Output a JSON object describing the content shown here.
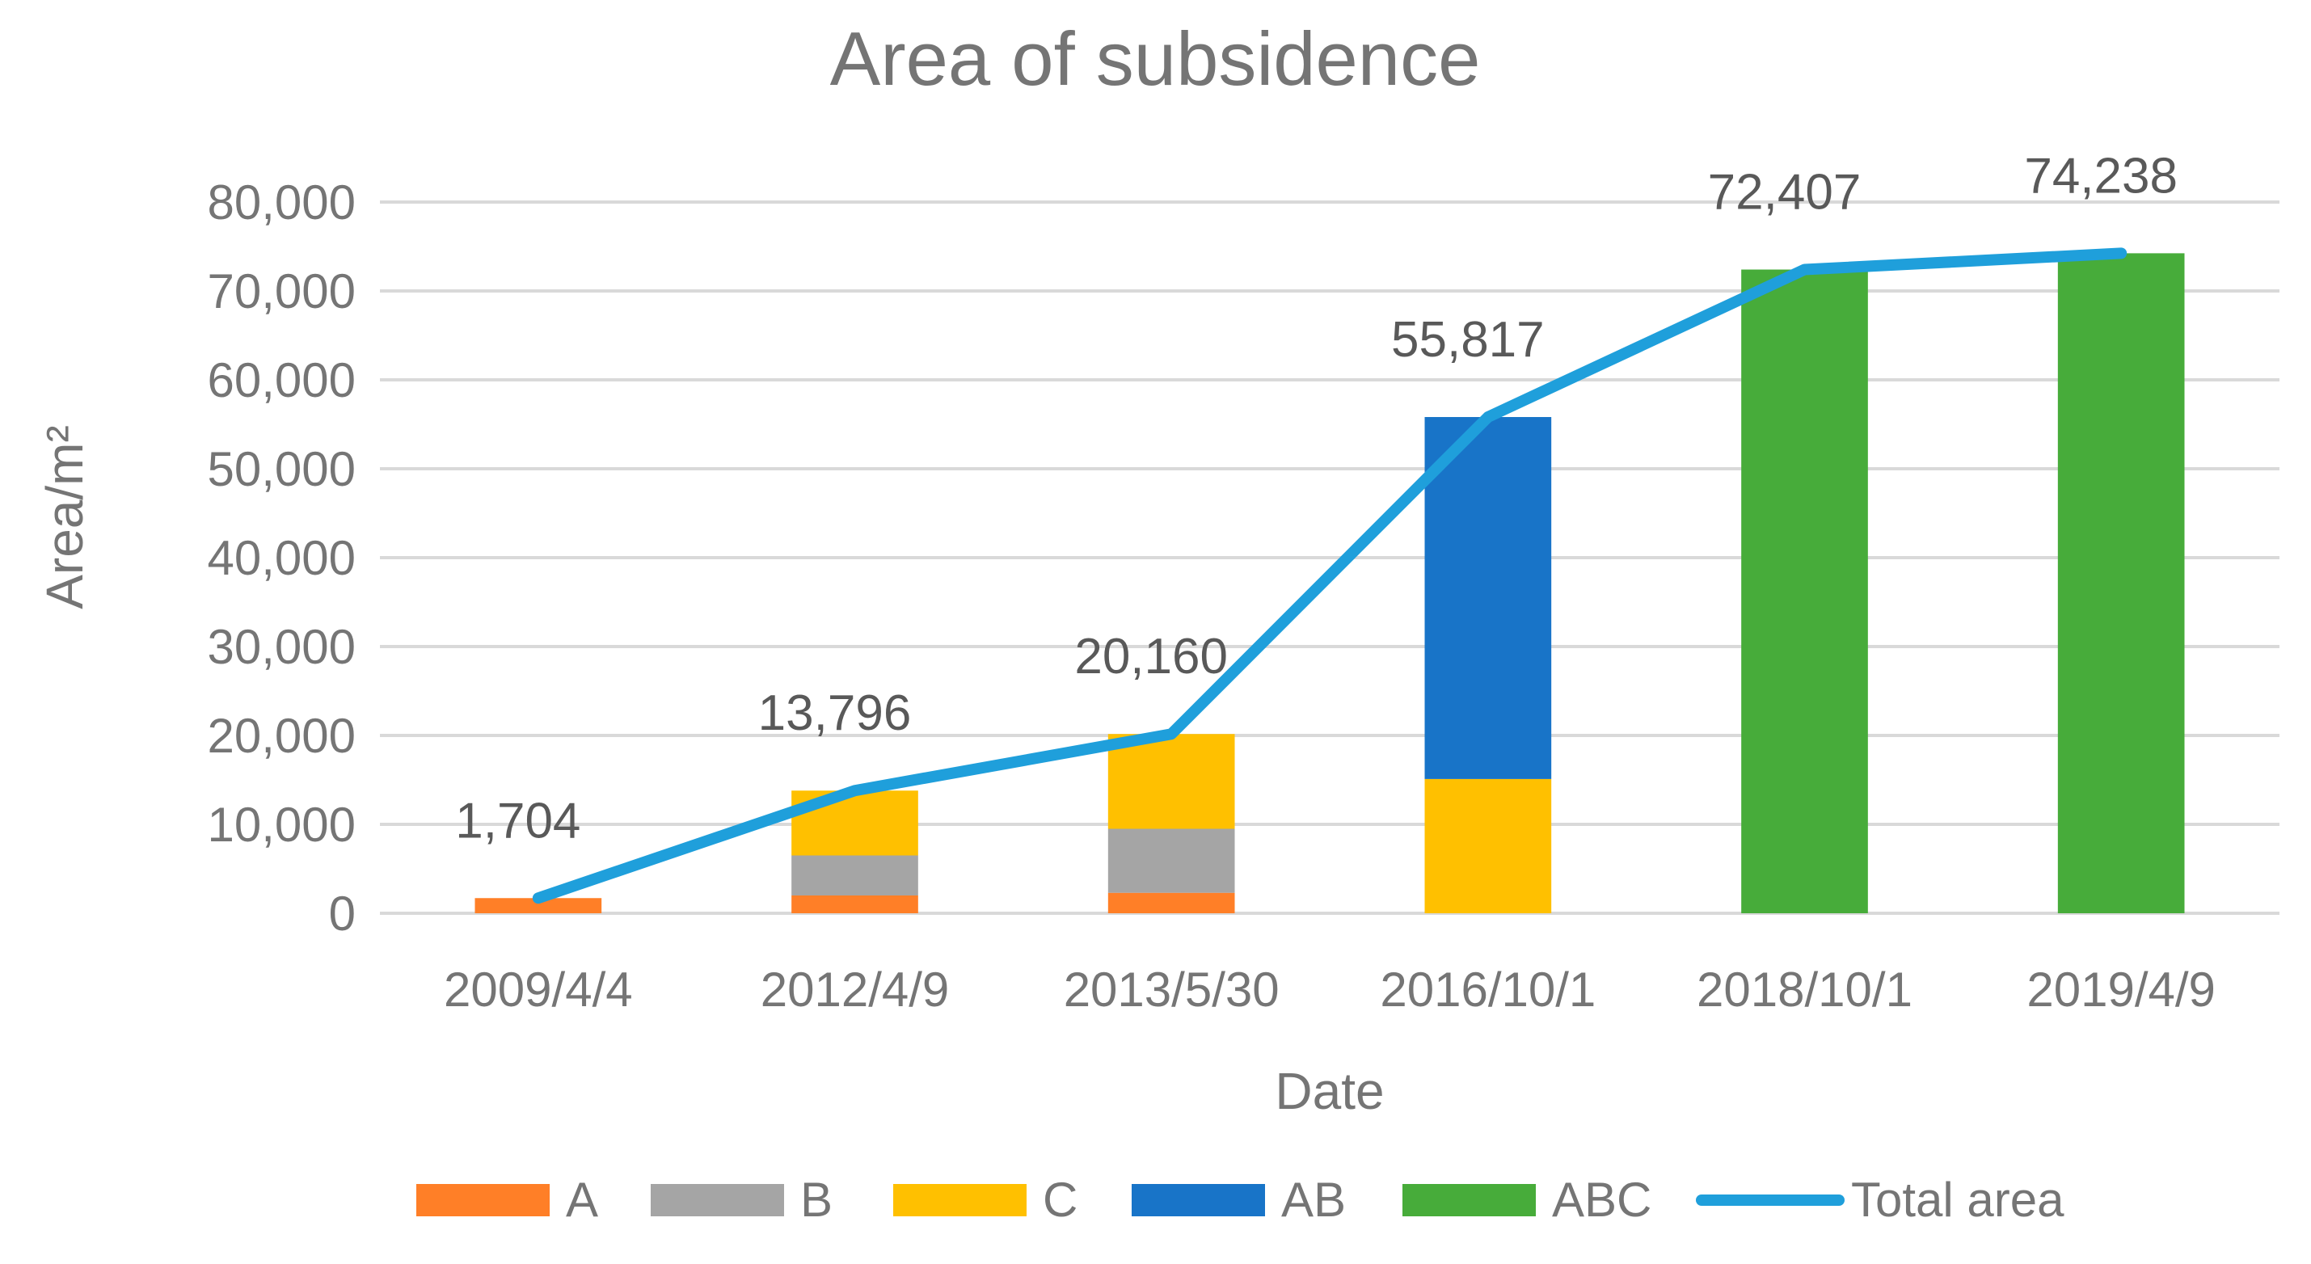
{
  "chart_data": {
    "type": "bar",
    "stacked": true,
    "title": "Area of subsidence",
    "xlabel": "Date",
    "ylabel": "Area/m²",
    "ylim": [
      0,
      80000
    ],
    "yticks": [
      0,
      10000,
      20000,
      30000,
      40000,
      50000,
      60000,
      70000,
      80000
    ],
    "ytick_labels": [
      "0",
      "10,000",
      "20,000",
      "30,000",
      "40,000",
      "50,000",
      "60,000",
      "70,000",
      "80,000"
    ],
    "categories": [
      "2009/4/4",
      "2012/4/9",
      "2013/5/30",
      "2016/10/1",
      "2018/10/1",
      "2019/4/9"
    ],
    "grid": true,
    "legend_position": "bottom",
    "series": [
      {
        "name": "A",
        "color": "#FF7F27",
        "values": [
          1704,
          2000,
          2300,
          0,
          0,
          0
        ]
      },
      {
        "name": "B",
        "color": "#A5A5A5",
        "values": [
          0,
          4500,
          7200,
          0,
          0,
          0
        ]
      },
      {
        "name": "C",
        "color": "#FFC000",
        "values": [
          0,
          7296,
          10660,
          15100,
          0,
          0
        ]
      },
      {
        "name": "AB",
        "color": "#1874C8",
        "values": [
          0,
          0,
          0,
          40717,
          0,
          0
        ]
      },
      {
        "name": "ABC",
        "color": "#47AC3A",
        "values": [
          0,
          0,
          0,
          0,
          72407,
          74238
        ]
      }
    ],
    "line_series": {
      "name": "Total area",
      "color": "#1F9FDB",
      "values": [
        1704,
        13796,
        20160,
        55817,
        72407,
        74238
      ],
      "labels": [
        "1,704",
        "13,796",
        "20,160",
        "55,817",
        "72,407",
        "74,238"
      ]
    }
  }
}
